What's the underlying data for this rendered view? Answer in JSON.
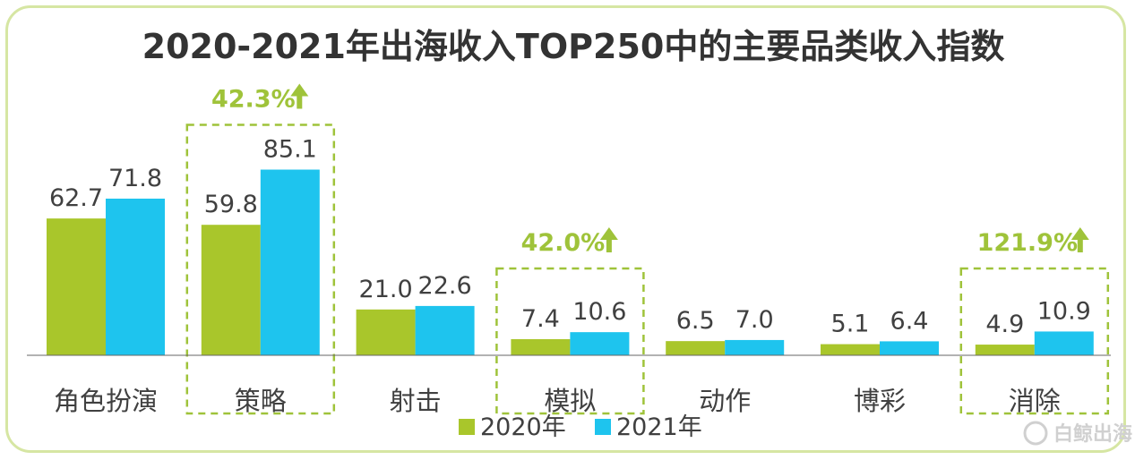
{
  "chart_data": {
    "type": "bar",
    "title": "2020-2021年出海收入TOP250中的主要品类收入指数",
    "categories": [
      "角色扮演",
      "策略",
      "射击",
      "模拟",
      "动作",
      "博彩",
      "消除"
    ],
    "series": [
      {
        "name": "2020年",
        "values": [
          62.7,
          59.8,
          21.0,
          7.4,
          6.5,
          5.1,
          4.9
        ]
      },
      {
        "name": "2021年",
        "values": [
          71.8,
          85.1,
          22.6,
          10.6,
          7.0,
          6.4,
          10.9
        ]
      }
    ],
    "value_labels": [
      [
        "62.7",
        "59.8",
        "21.0",
        "7.4",
        "6.5",
        "5.1",
        "4.9"
      ],
      [
        "71.8",
        "85.1",
        "22.6",
        "10.6",
        "7.0",
        "6.4",
        "10.9"
      ]
    ],
    "ylim": [
      0,
      100
    ],
    "xlabel": "",
    "ylabel": "",
    "grid": false,
    "legend_position": "bottom",
    "highlights": [
      {
        "category_index": 1,
        "label": "42.3%",
        "arrow": "up"
      },
      {
        "category_index": 3,
        "label": "42.0%",
        "arrow": "up"
      },
      {
        "category_index": 6,
        "label": "121.9%",
        "arrow": "up"
      }
    ],
    "colors": {
      "2020": "#a9c62b",
      "2021": "#1ec4ee",
      "highlight": "#9fc33a",
      "border": "#d6e6a3",
      "text": "#404040",
      "axis": "#666666",
      "watermark": "#d0d0d0"
    }
  },
  "watermark": {
    "text": "白鲸出海"
  }
}
